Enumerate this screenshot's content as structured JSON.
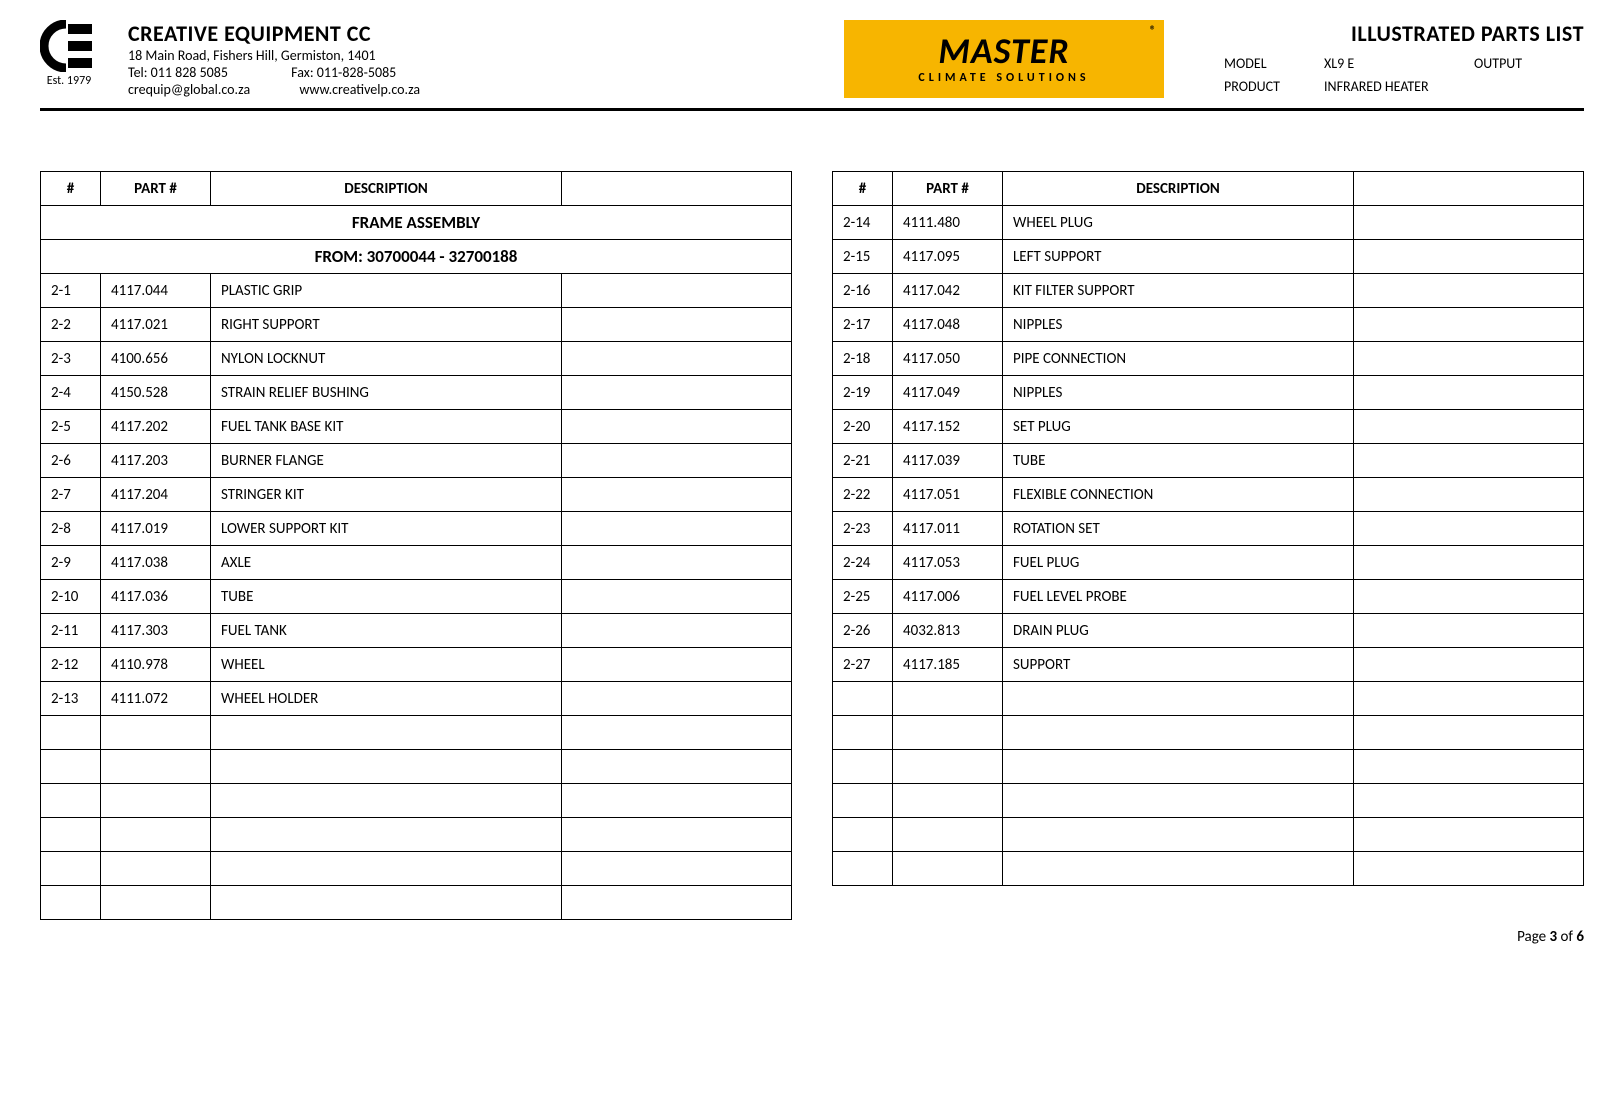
{
  "header": {
    "est": "Est. 1979",
    "company_name": "CREATIVE EQUIPMENT CC",
    "address": "18 Main Road, Fishers Hill, Germiston, 1401",
    "tel": "Tel: 011 828 5085",
    "fax": "Fax: 011-828-5085",
    "email": "crequip@global.co.za",
    "web": "www.creativelp.co.za",
    "master_brand": "MASTER",
    "master_reg": "®",
    "master_sub": "CLIMATE SOLUTIONS",
    "doc_title": "ILLUSTRATED PARTS LIST",
    "meta": {
      "model_label": "MODEL",
      "model_value": "XL9 E",
      "output_label": "OUTPUT",
      "output_value": "",
      "product_label": "PRODUCT",
      "product_value": "INFRARED HEATER"
    }
  },
  "table_headers": {
    "num": "#",
    "part": "PART #",
    "desc": "DESCRIPTION"
  },
  "left_table": {
    "section1": "FRAME ASSEMBLY",
    "section2": "FROM:  30700044 - 32700188",
    "rows": [
      {
        "num": "2-1",
        "part": "4117.044",
        "desc": "PLASTIC GRIP"
      },
      {
        "num": "2-2",
        "part": "4117.021",
        "desc": "RIGHT SUPPORT"
      },
      {
        "num": "2-3",
        "part": "4100.656",
        "desc": "NYLON LOCKNUT"
      },
      {
        "num": "2-4",
        "part": "4150.528",
        "desc": "STRAIN RELIEF BUSHING"
      },
      {
        "num": "2-5",
        "part": "4117.202",
        "desc": "FUEL TANK BASE KIT"
      },
      {
        "num": "2-6",
        "part": "4117.203",
        "desc": "BURNER FLANGE"
      },
      {
        "num": "2-7",
        "part": "4117.204",
        "desc": "STRINGER KIT"
      },
      {
        "num": "2-8",
        "part": "4117.019",
        "desc": "LOWER SUPPORT KIT"
      },
      {
        "num": "2-9",
        "part": "4117.038",
        "desc": "AXLE"
      },
      {
        "num": "2-10",
        "part": "4117.036",
        "desc": "TUBE"
      },
      {
        "num": "2-11",
        "part": "4117.303",
        "desc": "FUEL TANK"
      },
      {
        "num": "2-12",
        "part": "4110.978",
        "desc": "WHEEL"
      },
      {
        "num": "2-13",
        "part": "4111.072",
        "desc": "WHEEL HOLDER"
      }
    ],
    "empty_rows": 6
  },
  "right_table": {
    "rows": [
      {
        "num": "2-14",
        "part": "4111.480",
        "desc": "WHEEL PLUG"
      },
      {
        "num": "2-15",
        "part": "4117.095",
        "desc": "LEFT SUPPORT"
      },
      {
        "num": "2-16",
        "part": "4117.042",
        "desc": "KIT FILTER SUPPORT"
      },
      {
        "num": "2-17",
        "part": "4117.048",
        "desc": "NIPPLES"
      },
      {
        "num": "2-18",
        "part": "4117.050",
        "desc": "PIPE CONNECTION"
      },
      {
        "num": "2-19",
        "part": "4117.049",
        "desc": "NIPPLES"
      },
      {
        "num": "2-20",
        "part": "4117.152",
        "desc": "SET PLUG"
      },
      {
        "num": "2-21",
        "part": "4117.039",
        "desc": "TUBE"
      },
      {
        "num": "2-22",
        "part": "4117.051",
        "desc": "FLEXIBLE CONNECTION"
      },
      {
        "num": "2-23",
        "part": "4117.011",
        "desc": "ROTATION SET"
      },
      {
        "num": "2-24",
        "part": "4117.053",
        "desc": "FUEL PLUG"
      },
      {
        "num": "2-25",
        "part": "4117.006",
        "desc": "FUEL LEVEL PROBE"
      },
      {
        "num": "2-26",
        "part": "4032.813",
        "desc": "DRAIN PLUG"
      },
      {
        "num": "2-27",
        "part": "4117.185",
        "desc": "SUPPORT"
      }
    ],
    "empty_rows": 6
  },
  "footer": {
    "page_word": "Page ",
    "page_num": "3",
    "of_word": " of ",
    "page_total": "6"
  },
  "colors": {
    "master_bg": "#f7b500",
    "text": "#000000",
    "border": "#000000"
  }
}
